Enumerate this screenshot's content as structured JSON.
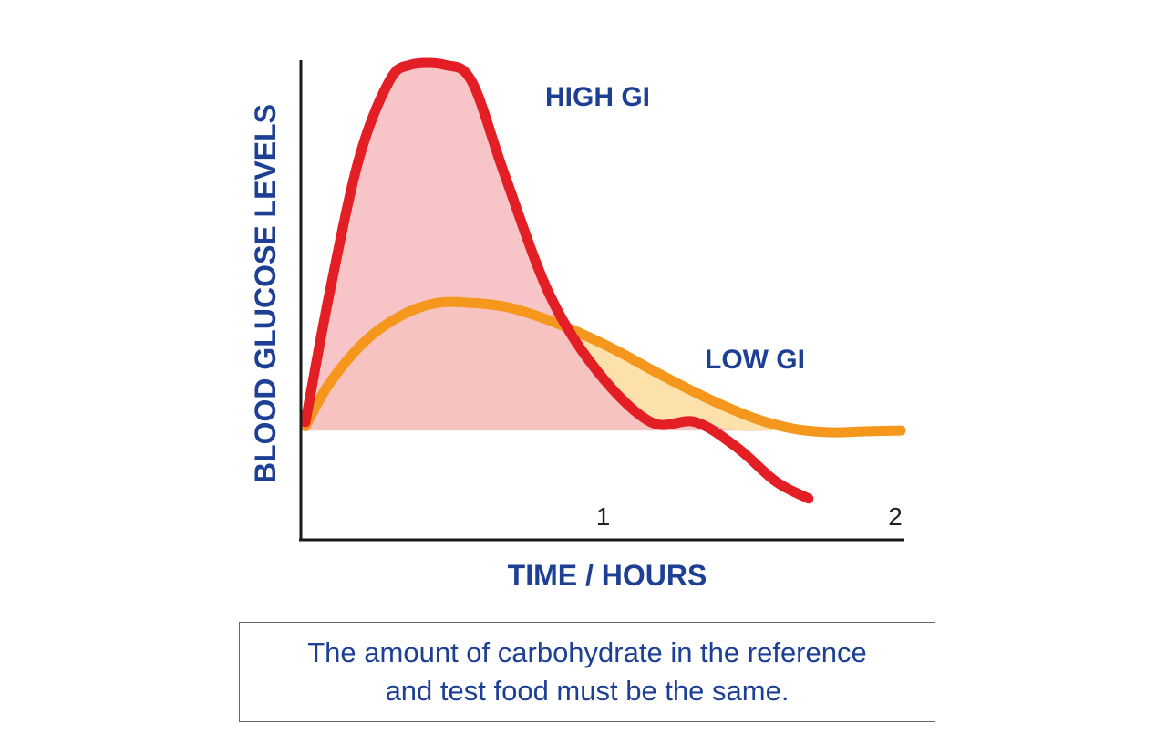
{
  "chart_data": {
    "type": "area",
    "xlabel": "TIME / HOURS",
    "ylabel": "BLOOD GLUCOSE LEVELS",
    "x_ticks": [
      {
        "value": 1,
        "label": "1"
      },
      {
        "value": 2,
        "label": "2"
      }
    ],
    "xlim": [
      0,
      2
    ],
    "ylim": [
      -0.9,
      4.4
    ],
    "baseline": 0,
    "grid": false,
    "series": [
      {
        "name": "HIGH GI",
        "color": "#e31e24",
        "fill": "#f6c0c2",
        "x": [
          0,
          0.08,
          0.18,
          0.28,
          0.35,
          0.47,
          0.56,
          0.67,
          0.82,
          0.98,
          1.16,
          1.31,
          1.45,
          1.58,
          1.69
        ],
        "y": [
          0.1,
          1.6,
          3.2,
          4.1,
          4.3,
          4.3,
          4.1,
          3.0,
          1.6,
          0.7,
          0.1,
          0.1,
          -0.2,
          -0.6,
          -0.8
        ]
      },
      {
        "name": "LOW GI",
        "color": "#f5961d",
        "fill": "#fde1aa",
        "x": [
          0,
          0.08,
          0.2,
          0.32,
          0.44,
          0.56,
          0.68,
          0.8,
          0.92,
          1.04,
          1.16,
          1.28,
          1.4,
          1.52,
          1.64,
          1.76,
          1.88,
          2.0
        ],
        "y": [
          0.05,
          0.55,
          1.05,
          1.35,
          1.5,
          1.5,
          1.45,
          1.32,
          1.15,
          0.95,
          0.72,
          0.5,
          0.3,
          0.13,
          0.02,
          -0.02,
          -0.01,
          0
        ]
      }
    ],
    "series_label_color": "#1d3f94",
    "axis_title_color": "#1d3f94"
  },
  "note": {
    "line1": "The amount of carbohydrate in the reference",
    "line2": "and test food must be the same.",
    "color": "#1d3f94"
  }
}
